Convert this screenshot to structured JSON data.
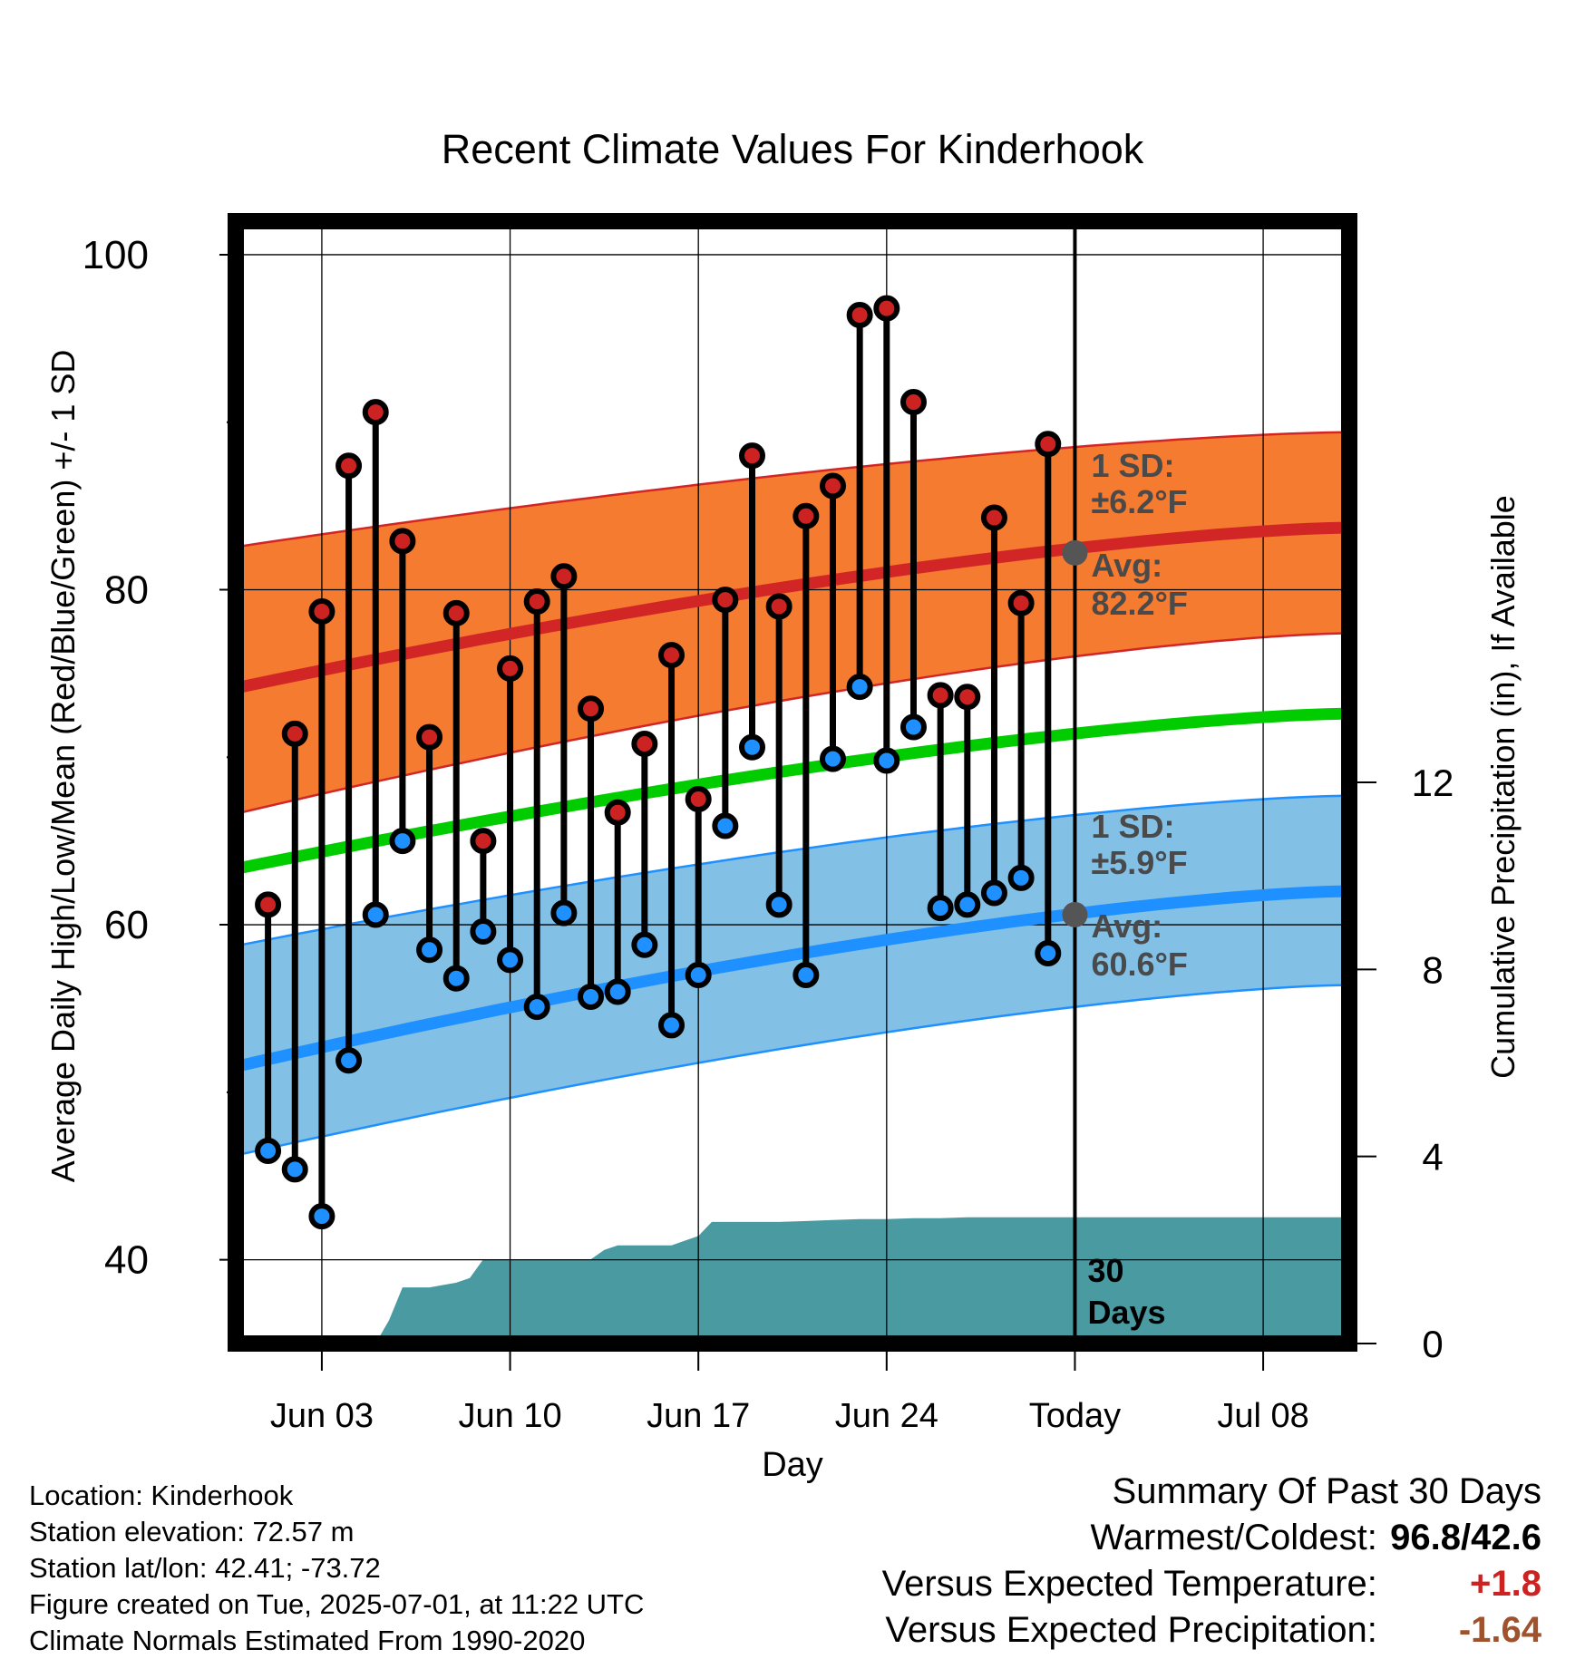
{
  "chart_data": {
    "type": "line",
    "title": "Recent Climate Values For Kinderhook",
    "xlabel": "Day",
    "ylabel": "Average Daily High/Low/Mean (Red/Blue/Green) +/- 1 SD",
    "y2label": "Cumulative Precipitation (in), If Available",
    "x_tick_labels": [
      "Jun 03",
      "Jun 10",
      "Jun 17",
      "Jun 24",
      "Today",
      "Jul 08"
    ],
    "x_tick_days": [
      3,
      10,
      17,
      24,
      31,
      38
    ],
    "y_ticks": [
      40,
      60,
      80,
      100
    ],
    "y2_ticks": [
      0,
      4,
      8,
      12
    ],
    "ylim": [
      35,
      102
    ],
    "y2lim": [
      0,
      24
    ],
    "xlim": [
      -0.2,
      41.2
    ],
    "grid": true,
    "today_marker_label": "30 Days",
    "normals": {
      "x": [
        0,
        41
      ],
      "high_avg": [
        74.2,
        83.7
      ],
      "high_sd_upper": [
        82.6,
        89.4
      ],
      "high_sd_lower": [
        66.7,
        77.4
      ],
      "mean_avg": [
        63.4,
        72.6
      ],
      "low_avg": [
        51.6,
        62.0
      ],
      "low_sd_upper": [
        58.8,
        67.7
      ],
      "low_sd_lower": [
        46.3,
        56.4
      ]
    },
    "high_annotation": {
      "sd_title": "1 SD:",
      "sd_value": "±6.2°F",
      "avg_title": "Avg:",
      "avg_value": "82.2°F",
      "avg": 82.2
    },
    "low_annotation": {
      "sd_title": "1 SD:",
      "sd_value": "±5.9°F",
      "avg_title": "Avg:",
      "avg_value": "60.6°F",
      "avg": 60.6
    },
    "series": [
      {
        "name": "High",
        "color": "#cc2222",
        "x": [
          1,
          2,
          3,
          4,
          5,
          6,
          7,
          8,
          9,
          10,
          11,
          12,
          13,
          14,
          15,
          16,
          17,
          18,
          19,
          20,
          21,
          22,
          23,
          24,
          25,
          26,
          27,
          28,
          29,
          30
        ],
        "values": [
          61.2,
          71.4,
          78.7,
          87.4,
          90.6,
          82.9,
          71.2,
          78.6,
          65.0,
          75.3,
          79.3,
          80.8,
          72.9,
          66.7,
          70.8,
          76.1,
          67.5,
          79.4,
          88.0,
          79.0,
          84.4,
          86.2,
          96.4,
          96.8,
          91.2,
          73.7,
          73.6,
          84.3,
          79.2,
          88.7
        ]
      },
      {
        "name": "Low",
        "color": "#1e90ff",
        "x": [
          1,
          2,
          3,
          4,
          5,
          6,
          7,
          8,
          9,
          10,
          11,
          12,
          13,
          14,
          15,
          16,
          17,
          18,
          19,
          20,
          21,
          22,
          23,
          24,
          25,
          26,
          27,
          28,
          29,
          30
        ],
        "values": [
          46.5,
          45.4,
          42.6,
          51.9,
          60.6,
          65.0,
          58.5,
          56.8,
          59.6,
          57.9,
          55.1,
          60.7,
          55.7,
          56.0,
          58.8,
          54.0,
          57.0,
          65.9,
          70.6,
          61.2,
          57.0,
          69.9,
          74.2,
          69.8,
          71.8,
          61.0,
          61.2,
          61.9,
          62.8,
          58.3
        ]
      }
    ],
    "precipitation": {
      "x": [
        0,
        5.0,
        5.5,
        6.0,
        6.5,
        7.0,
        8.0,
        8.5,
        9.0,
        10.0,
        11.0,
        12.0,
        12.5,
        13.0,
        13.5,
        14.0,
        14.5,
        15.0,
        16.0,
        16.5,
        17.0,
        17.5,
        18.0,
        19.0,
        20.0,
        21.0,
        22.0,
        23.0,
        24.0,
        25.0,
        26.0,
        27.0,
        28.0,
        29.0,
        30.0,
        31.0,
        41
      ],
      "values": [
        0,
        0,
        0.5,
        1.2,
        1.2,
        1.2,
        1.3,
        1.4,
        1.8,
        1.8,
        1.8,
        1.8,
        1.8,
        1.8,
        2.0,
        2.1,
        2.1,
        2.1,
        2.1,
        2.2,
        2.3,
        2.6,
        2.6,
        2.6,
        2.6,
        2.62,
        2.64,
        2.66,
        2.66,
        2.68,
        2.68,
        2.7,
        2.7,
        2.7,
        2.7,
        2.7,
        2.7
      ]
    }
  },
  "footer": {
    "location": "Location: Kinderhook",
    "elevation": "Station elevation: 72.57 m",
    "latlon": "Station lat/lon: 42.41; -73.72",
    "created": "Figure created on Tue, 2025-07-01, at 11:22 UTC",
    "normals_period": "Climate Normals Estimated From 1990-2020"
  },
  "summary": {
    "title": "Summary Of Past 30 Days",
    "warmest_label": "Warmest/Coldest:",
    "warmest_value": "96.8/42.6",
    "temp_label": "Versus Expected Temperature:",
    "temp_value": "+1.8",
    "temp_color": "#cc2222",
    "precip_label": "Versus Expected Precipitation:",
    "precip_value": "-1.64",
    "precip_color": "#a0522d"
  },
  "colors": {
    "high_band": "#f47b30",
    "high_line": "#d22626",
    "low_band": "#82c0e6",
    "low_line": "#1e90ff",
    "mean_line": "#00cc00",
    "precip_fill": "#4a9aa2",
    "avg_dot": "#555555"
  }
}
